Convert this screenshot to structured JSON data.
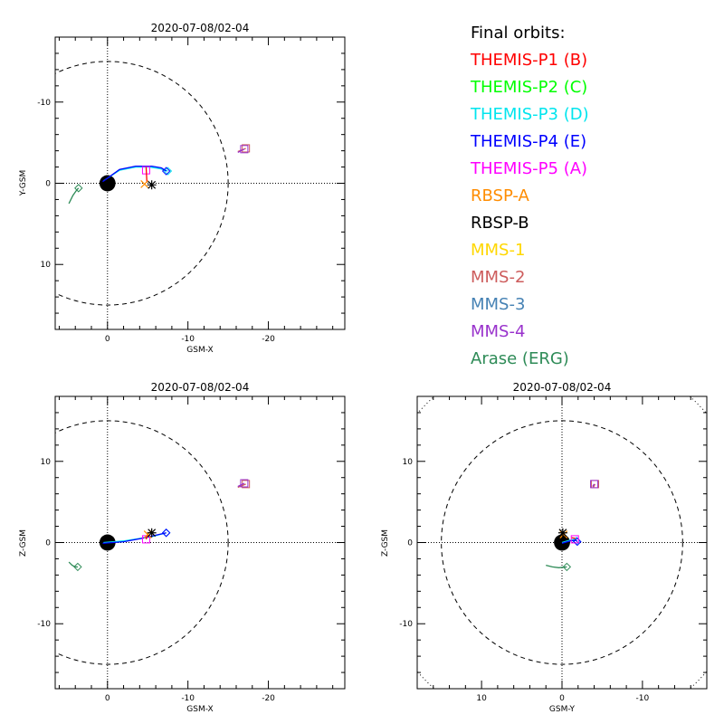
{
  "legend": {
    "title": "Final orbits:",
    "entries": [
      {
        "label": "THEMIS-P1 (B)",
        "color": "#ff0000"
      },
      {
        "label": "THEMIS-P2 (C)",
        "color": "#00ff00"
      },
      {
        "label": "THEMIS-P3 (D)",
        "color": "#00e5ee"
      },
      {
        "label": "THEMIS-P4 (E)",
        "color": "#0000ff"
      },
      {
        "label": "THEMIS-P5 (A)",
        "color": "#ff00ff"
      },
      {
        "label": "RBSP-A",
        "color": "#ff8c00"
      },
      {
        "label": "RBSP-B",
        "color": "#000000"
      },
      {
        "label": "MMS-1",
        "color": "#ffd700"
      },
      {
        "label": "MMS-2",
        "color": "#cd5c5c"
      },
      {
        "label": "MMS-3",
        "color": "#4682b4"
      },
      {
        "label": "MMS-4",
        "color": "#9932cc"
      },
      {
        "label": "Arase (ERG)",
        "color": "#2e8b57"
      }
    ]
  },
  "chart_data": [
    {
      "type": "scatter",
      "title": "2020-07-08/02-04",
      "xlabel": "GSM-X",
      "ylabel": "Y-GSM",
      "xlim": [
        6.5,
        -29.5
      ],
      "ylim": [
        -18,
        18
      ],
      "xticks": [
        0,
        -10,
        -20
      ],
      "yticks": [
        -10,
        0,
        10
      ],
      "reversed_y": true,
      "grid": "dotted zero lines",
      "earth_radius": 1,
      "boundaries": [
        {
          "kind": "circle",
          "radius": 15,
          "style": "dashed"
        }
      ],
      "series": [
        {
          "color": "#00e5ee",
          "marker": "diamond",
          "x": [
            0.5,
            -1.5,
            -3.5,
            -5.2,
            -6.5,
            -7.5
          ],
          "y": [
            -0.3,
            -1.6,
            -2.0,
            -2.0,
            -1.8,
            -1.5
          ]
        },
        {
          "color": "#0000ff",
          "marker": "diamond",
          "x": [
            0.6,
            -1.5,
            -3.5,
            -5.5,
            -6.7,
            -7.3
          ],
          "y": [
            -0.2,
            -1.7,
            -2.1,
            -2.1,
            -1.9,
            -1.5
          ]
        },
        {
          "color": "#ff00ff",
          "marker": "square",
          "x": [
            -4.8
          ],
          "y": [
            -1.6
          ]
        },
        {
          "color": "#ff0000",
          "marker": "none",
          "x": [
            -4.8,
            -4.9
          ],
          "y": [
            -2.0,
            -0.1
          ]
        },
        {
          "color": "#ff8c00",
          "marker": "x",
          "x": [
            -4.6
          ],
          "y": [
            0.1
          ]
        },
        {
          "color": "#000000",
          "marker": "asterisk",
          "x": [
            -5.5
          ],
          "y": [
            0.2
          ]
        },
        {
          "color": "#cd5c5c",
          "marker": "square",
          "x": [
            -16.2,
            -17.2
          ],
          "y": [
            -3.9,
            -4.3
          ]
        },
        {
          "color": "#9932cc",
          "marker": "square",
          "x": [
            -16.2,
            -17.0
          ],
          "y": [
            -3.8,
            -4.2
          ]
        },
        {
          "color": "#2e8b57",
          "marker": "diamond",
          "x": [
            4.8,
            4.3,
            3.8,
            3.6
          ],
          "y": [
            2.5,
            1.5,
            0.8,
            0.6
          ]
        }
      ]
    },
    {
      "type": "scatter",
      "title": "2020-07-08/02-04",
      "xlabel": "GSM-X",
      "ylabel": "Z-GSM",
      "xlim": [
        6.5,
        -29.5
      ],
      "ylim": [
        -18,
        18
      ],
      "xticks": [
        0,
        -10,
        -20
      ],
      "yticks": [
        -10,
        0,
        10
      ],
      "reversed_y": false,
      "grid": "dotted zero lines",
      "earth_radius": 1,
      "boundaries": [
        {
          "kind": "circle",
          "radius": 15,
          "style": "dashed"
        }
      ],
      "series": [
        {
          "color": "#00e5ee",
          "marker": "diamond",
          "x": [
            0.5,
            -2.0,
            -4.0,
            -5.8,
            -7.3
          ],
          "y": [
            0.0,
            0.2,
            0.5,
            0.8,
            1.2
          ]
        },
        {
          "color": "#0000ff",
          "marker": "diamond",
          "x": [
            0.6,
            -2.0,
            -4.2,
            -6.0,
            -7.3
          ],
          "y": [
            -0.1,
            0.1,
            0.5,
            0.9,
            1.2
          ]
        },
        {
          "color": "#ff00ff",
          "marker": "square",
          "x": [
            -4.8
          ],
          "y": [
            0.4
          ]
        },
        {
          "color": "#ff0000",
          "marker": "none",
          "x": [
            -4.8,
            -5.0
          ],
          "y": [
            0.4,
            0.9
          ]
        },
        {
          "color": "#ff8c00",
          "marker": "x",
          "x": [
            -5.0
          ],
          "y": [
            1.0
          ]
        },
        {
          "color": "#000000",
          "marker": "asterisk",
          "x": [
            -5.5
          ],
          "y": [
            1.2
          ]
        },
        {
          "color": "#cd5c5c",
          "marker": "square",
          "x": [
            -16.2,
            -17.2
          ],
          "y": [
            6.8,
            7.2
          ]
        },
        {
          "color": "#9932cc",
          "marker": "square",
          "x": [
            -16.2,
            -17.0
          ],
          "y": [
            6.9,
            7.3
          ]
        },
        {
          "color": "#2e8b57",
          "marker": "diamond",
          "x": [
            4.8,
            4.4,
            4.0,
            3.7
          ],
          "y": [
            -2.4,
            -2.8,
            -3.0,
            -3.0
          ]
        }
      ]
    },
    {
      "type": "scatter",
      "title": "2020-07-08/02-04",
      "xlabel": "GSM-Y",
      "ylabel": "Z-GSM",
      "xlim": [
        18,
        -18
      ],
      "ylim": [
        -18,
        18
      ],
      "xticks": [
        10,
        0,
        -10
      ],
      "yticks": [
        -10,
        0,
        10
      ],
      "reversed_y": false,
      "grid": "dotted zero lines",
      "earth_radius": 1,
      "boundaries": [
        {
          "kind": "circle",
          "radius": 15,
          "style": "dashed"
        },
        {
          "kind": "circle",
          "radius": 24,
          "style": "dotted"
        }
      ],
      "series": [
        {
          "color": "#00e5ee",
          "marker": "diamond",
          "x": [
            0.0,
            -1.0,
            -1.6,
            -1.8
          ],
          "y": [
            0.0,
            0.3,
            0.4,
            0.2
          ]
        },
        {
          "color": "#0000ff",
          "marker": "diamond",
          "x": [
            0.0,
            -1.0,
            -1.7,
            -1.9
          ],
          "y": [
            -0.1,
            0.2,
            0.3,
            0.1
          ]
        },
        {
          "color": "#ff00ff",
          "marker": "square",
          "x": [
            -1.6
          ],
          "y": [
            0.4
          ]
        },
        {
          "color": "#ff0000",
          "marker": "none",
          "x": [
            -1.2,
            -1.7
          ],
          "y": [
            0.6,
            0.5
          ]
        },
        {
          "color": "#ff8c00",
          "marker": "x",
          "x": [
            -0.2
          ],
          "y": [
            1.0
          ]
        },
        {
          "color": "#000000",
          "marker": "asterisk",
          "x": [
            -0.1
          ],
          "y": [
            1.2
          ]
        },
        {
          "color": "#cd5c5c",
          "marker": "square",
          "x": [
            -3.9,
            -4.1
          ],
          "y": [
            6.8,
            7.2
          ]
        },
        {
          "color": "#9932cc",
          "marker": "square",
          "x": [
            -3.8,
            -4.0
          ],
          "y": [
            6.9,
            7.2
          ]
        },
        {
          "color": "#2e8b57",
          "marker": "diamond",
          "x": [
            2.0,
            1.2,
            0.4,
            -0.6
          ],
          "y": [
            -2.8,
            -3.0,
            -3.1,
            -3.0
          ]
        }
      ]
    }
  ]
}
